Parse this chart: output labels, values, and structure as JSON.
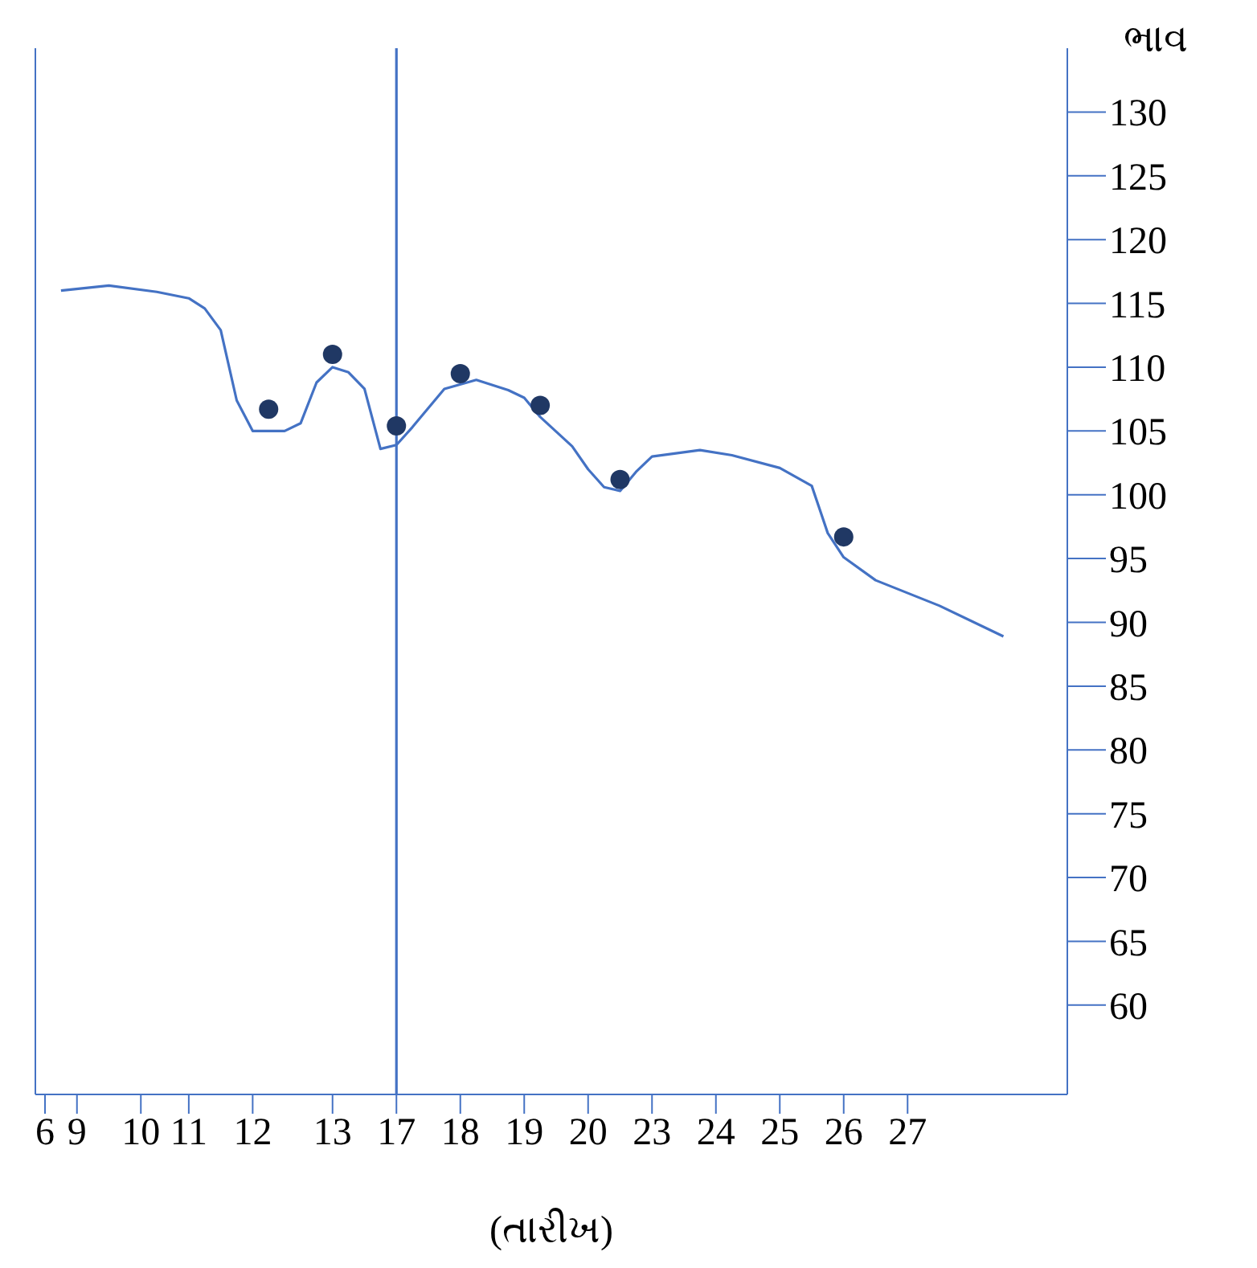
{
  "chart_data": {
    "type": "line",
    "xlabel": "(તારીખ)",
    "ylabel": "ભાવ",
    "categories": [
      "6",
      null,
      "9",
      null,
      null,
      null,
      "10",
      null,
      null,
      "11",
      null,
      null,
      null,
      "12",
      null,
      null,
      null,
      null,
      "13",
      null,
      null,
      null,
      "17",
      null,
      null,
      null,
      "18",
      null,
      null,
      null,
      "19",
      null,
      null,
      null,
      "20",
      null,
      null,
      null,
      "23",
      null,
      null,
      null,
      "24",
      null,
      null,
      null,
      "25",
      null,
      null,
      null,
      "26",
      null,
      null,
      null,
      "27",
      null,
      null,
      null,
      null,
      null,
      null,
      null,
      null,
      null,
      null
    ],
    "ylim": [
      53,
      135
    ],
    "yticks": [
      60,
      65,
      70,
      75,
      80,
      85,
      90,
      95,
      100,
      105,
      110,
      115,
      120,
      125,
      130
    ],
    "series": [
      {
        "color": "#4472c4",
        "marker": "none",
        "values": [
          null,
          116.0,
          null,
          null,
          116.4,
          null,
          null,
          115.9,
          null,
          115.4,
          114.6,
          112.9,
          107.4,
          105.0,
          null,
          105.0,
          105.6,
          108.8,
          110.0,
          109.6,
          108.3,
          103.6,
          103.9,
          105.3,
          106.8,
          108.3,
          null,
          109.0,
          null,
          108.2,
          107.6,
          106.1,
          null,
          103.8,
          102.0,
          100.6,
          100.3,
          101.8,
          103.0,
          null,
          null,
          103.5,
          null,
          103.1,
          null,
          null,
          102.1,
          null,
          100.7,
          97.0,
          95.1,
          null,
          93.3,
          null,
          null,
          null,
          91.3,
          null,
          null,
          null,
          88.9,
          null,
          null,
          null,
          null
        ]
      },
      {
        "type": "scatter",
        "color": "#203864",
        "marker": "circle",
        "values": [
          null,
          null,
          null,
          null,
          null,
          null,
          null,
          null,
          null,
          null,
          null,
          null,
          null,
          null,
          106.7,
          null,
          null,
          null,
          111.0,
          null,
          null,
          null,
          105.4,
          null,
          null,
          null,
          109.5,
          null,
          null,
          null,
          null,
          107.0,
          null,
          null,
          null,
          null,
          101.2,
          null,
          null,
          null,
          null,
          null,
          null,
          null,
          null,
          null,
          null,
          null,
          null,
          null,
          96.7,
          null,
          null,
          null,
          null,
          null,
          null,
          null,
          null,
          null,
          null,
          null,
          null,
          null,
          null
        ]
      }
    ],
    "ref_lines": [
      {
        "axis": "x",
        "value": "17",
        "color": "#4472c4"
      }
    ]
  }
}
